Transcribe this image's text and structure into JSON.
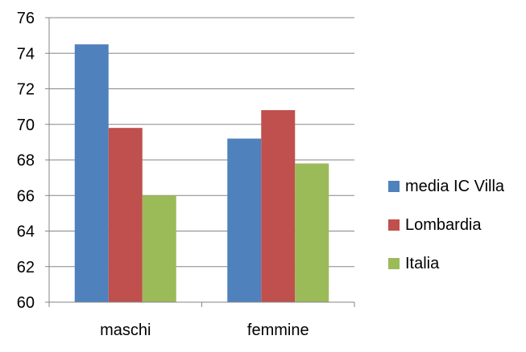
{
  "chart_data": {
    "type": "bar",
    "title": "",
    "xlabel": "",
    "ylabel": "",
    "categories": [
      "maschi",
      "femmine"
    ],
    "series": [
      {
        "name": "media IC Villa",
        "color": "#4F81BD",
        "values": [
          74.5,
          69.2
        ]
      },
      {
        "name": "Lombardia",
        "color": "#C0504D",
        "values": [
          69.8,
          70.8
        ]
      },
      {
        "name": "Italia",
        "color": "#9BBB59",
        "values": [
          66.0,
          67.8
        ]
      }
    ],
    "ylim": [
      60,
      76
    ],
    "yticks": [
      60,
      62,
      64,
      66,
      68,
      70,
      72,
      74,
      76
    ],
    "grid": true,
    "legend_position": "right"
  }
}
